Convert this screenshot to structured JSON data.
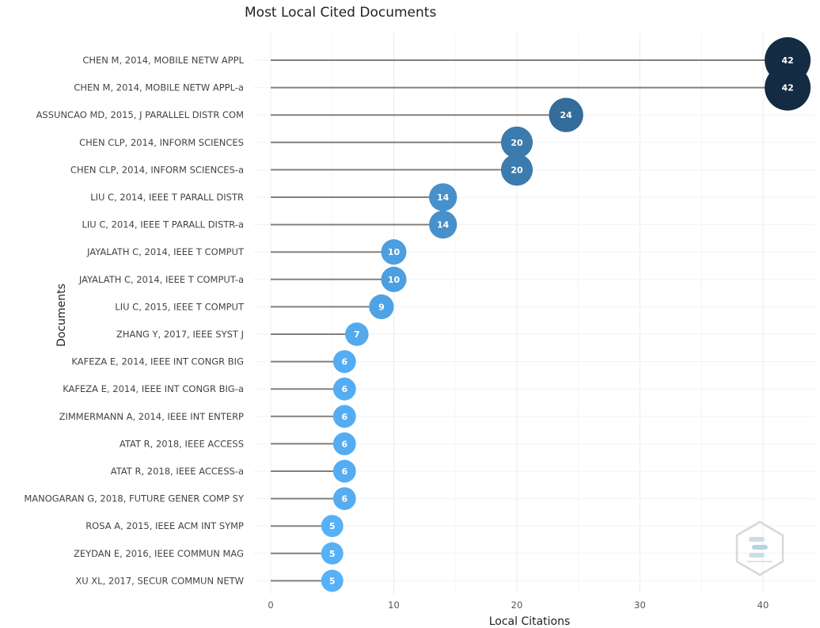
{
  "chart_data": {
    "type": "scatter",
    "subtype": "lollipop",
    "title": "Most Local Cited Documents",
    "xlabel": "Local Citations",
    "ylabel": "Documents",
    "xlim": [
      0,
      44
    ],
    "xticks": [
      0,
      10,
      20,
      30,
      40
    ],
    "grid": true,
    "categories": [
      "CHEN M, 2014, MOBILE NETW APPL",
      "CHEN M, 2014, MOBILE NETW APPL-a",
      "ASSUNCAO MD, 2015, J PARALLEL DISTR COM",
      "CHEN CLP, 2014, INFORM SCIENCES",
      "CHEN CLP, 2014, INFORM SCIENCES-a",
      "LIU C, 2014, IEEE T PARALL DISTR",
      "LIU C, 2014, IEEE T PARALL DISTR-a",
      "JAYALATH C, 2014, IEEE T COMPUT",
      "JAYALATH C, 2014, IEEE T COMPUT-a",
      "LIU C, 2015, IEEE T COMPUT",
      "ZHANG Y, 2017, IEEE SYST J",
      "KAFEZA E, 2014, IEEE INT CONGR BIG",
      "KAFEZA E, 2014, IEEE INT CONGR BIG-a",
      "ZIMMERMANN A, 2014, IEEE INT ENTERP",
      "ATAT R, 2018, IEEE ACCESS",
      "ATAT R, 2018, IEEE ACCESS-a",
      "MANOGARAN G, 2018, FUTURE GENER COMP SY",
      "ROSA A, 2015, IEEE ACM INT SYMP",
      "ZEYDAN E, 2016, IEEE COMMUN MAG",
      "XU XL, 2017, SECUR COMMUN NETW"
    ],
    "values": [
      42,
      42,
      24,
      20,
      20,
      14,
      14,
      10,
      10,
      9,
      7,
      6,
      6,
      6,
      6,
      6,
      6,
      5,
      5,
      5
    ],
    "color_scale": {
      "low": "#56b1f7",
      "high": "#132b43"
    },
    "line_color": "#808080"
  },
  "watermark": {
    "icon": "bibliometrix-logo-icon"
  }
}
